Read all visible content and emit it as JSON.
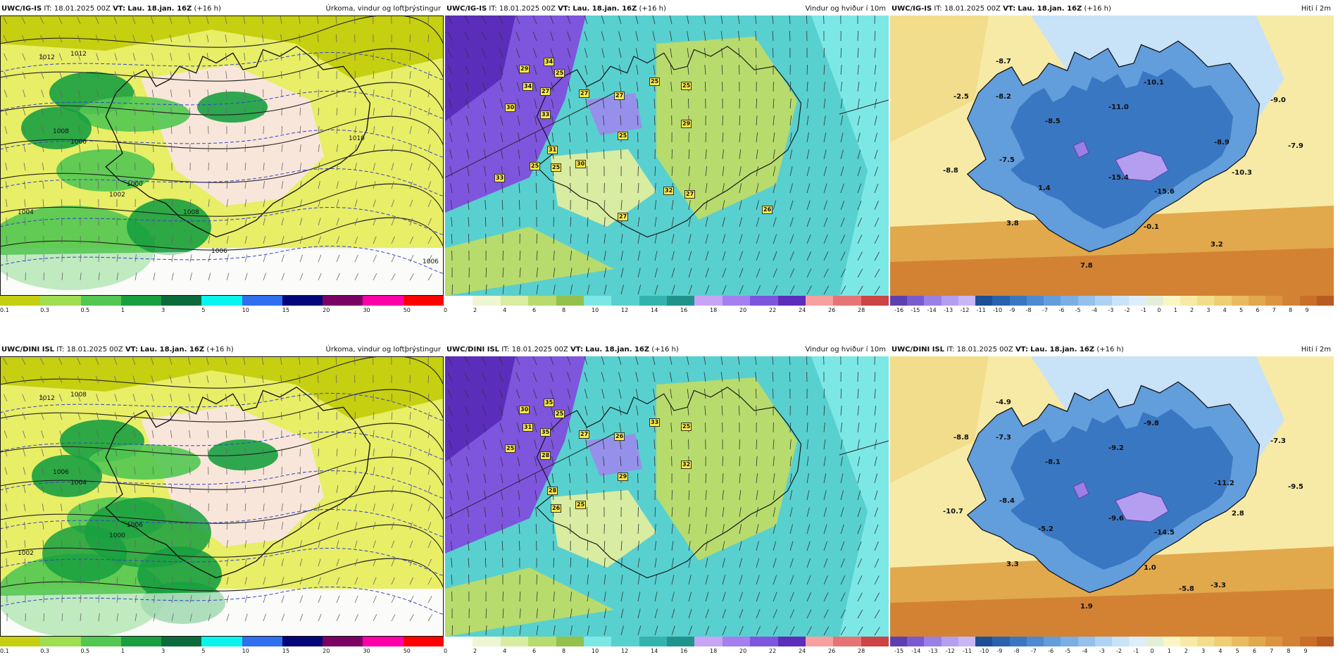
{
  "rows": [
    {
      "panels": [
        {
          "source": "UWC/IG-IS",
          "it": "IT: 18.01.2025 00Z",
          "vt_label": "VT:",
          "vt": "Lau. 18.jan. 16Z",
          "lead": "(+16 h)",
          "title": "Úrkoma, vindur og loftþrýstingur",
          "kind": "precip"
        },
        {
          "source": "UWC/IG-IS",
          "it": "IT: 18.01.2025 00Z",
          "vt_label": "VT:",
          "vt": "Lau. 18.jan. 16Z",
          "lead": "(+16 h)",
          "title": "Vindur og hviður í 10m",
          "kind": "wind"
        },
        {
          "source": "UWC/IG-IS",
          "it": "IT: 18.01.2025 00Z",
          "vt_label": "VT:",
          "vt": "Lau. 18.jan. 16Z",
          "lead": "(+16 h)",
          "title": "Hiti í 2m",
          "kind": "temp"
        }
      ],
      "temp_values": [
        "-8.7",
        "-2.5",
        "-8.2",
        "-10.1",
        "-11.0",
        "-9.0",
        "-8.5",
        "-8.9",
        "-7.9",
        "-7.5",
        "-8.8",
        "-15.4",
        "1.4",
        "-15.6",
        "-10.3",
        "3.8",
        "-0.1",
        "3.2",
        "7.8"
      ],
      "gust_values": [
        "29",
        "34",
        "25",
        "34",
        "27",
        "27",
        "27",
        "25",
        "25",
        "30",
        "33",
        "29",
        "25",
        "31",
        "25",
        "30",
        "33",
        "32",
        "27",
        "25",
        "27",
        "26"
      ],
      "pressure_labels": [
        "1012",
        "1012",
        "1008",
        "1006",
        "1004",
        "1002",
        "1000",
        "1006",
        "1006",
        "1008",
        "1010"
      ],
      "temp_scale_ticks": [
        "-16",
        "-15",
        "-14",
        "-13",
        "-12",
        "-11",
        "-10",
        "-9",
        "-8",
        "-7",
        "-6",
        "-5",
        "-4",
        "-3",
        "-2",
        "-1",
        "0",
        "1",
        "2",
        "3",
        "4",
        "5",
        "6",
        "7",
        "8",
        "9"
      ]
    },
    {
      "panels": [
        {
          "source": "UWC/DINI ISL",
          "it": "IT: 18.01.2025 00Z",
          "vt_label": "VT:",
          "vt": "Lau. 18.jan. 16Z",
          "lead": "(+16 h)",
          "title": "Úrkoma, vindur og loftþrýstingur",
          "kind": "precip"
        },
        {
          "source": "UWC/DINI ISL",
          "it": "IT: 18.01.2025 00Z",
          "vt_label": "VT:",
          "vt": "Lau. 18.jan. 16Z",
          "lead": "(+16 h)",
          "title": "Vindur og hviður í 10m",
          "kind": "wind"
        },
        {
          "source": "UWC/DINI ISL",
          "it": "IT: 18.01.2025 00Z",
          "vt_label": "VT:",
          "vt": "Lau. 18.jan. 16Z",
          "lead": "(+16 h)",
          "title": "Hiti í 2m",
          "kind": "temp"
        }
      ],
      "temp_values": [
        "-4.9",
        "-8.8",
        "-7.3",
        "-9.8",
        "-9.2",
        "-7.3",
        "-8.1",
        "-11.2",
        "-9.5",
        "-8.4",
        "-10.7",
        "-9.6",
        "-5.2",
        "-14.5",
        "2.8",
        "3.3",
        "1.0",
        "-3.3",
        "1.9",
        "-5.8"
      ],
      "gust_values": [
        "30",
        "35",
        "25",
        "31",
        "35",
        "27",
        "26",
        "25",
        "33",
        "25",
        "28",
        "32",
        "29",
        "28",
        "26",
        "25"
      ],
      "pressure_labels": [
        "1012",
        "1008",
        "1006",
        "1004",
        "1002",
        "1000",
        "1006"
      ],
      "temp_scale_ticks": [
        "-15",
        "-14",
        "-13",
        "-12",
        "-11",
        "-10",
        "-9",
        "-8",
        "-7",
        "-6",
        "-5",
        "-4",
        "-3",
        "-2",
        "-1",
        "0",
        "1",
        "2",
        "3",
        "4",
        "5",
        "6",
        "7",
        "8",
        "9"
      ]
    }
  ],
  "precip_scale": {
    "ticks": [
      "0.1",
      "0.3",
      "0.5",
      "1",
      "3",
      "5",
      "10",
      "15",
      "20",
      "30",
      "50"
    ],
    "colors": [
      "#e8ee66",
      "#c6cf10",
      "#9fde50",
      "#52c752",
      "#18a040",
      "#0b6b3b",
      "#08f4ee",
      "#2f6ff0",
      "#05057a",
      "#7a0064",
      "#ff00a8",
      "#ff0000"
    ]
  },
  "wind_scale": {
    "ticks": [
      "0",
      "2",
      "4",
      "6",
      "8",
      "10",
      "12",
      "14",
      "16",
      "18",
      "20",
      "22",
      "24",
      "26",
      "28"
    ],
    "colors": [
      "#ffffff",
      "#eef6d2",
      "#d8eca2",
      "#b8db6e",
      "#93c14c",
      "#7ce8e6",
      "#58d0cf",
      "#33b3ad",
      "#1f948c",
      "#c8a4f6",
      "#a57ff0",
      "#7e55dd",
      "#5c2dbb",
      "#f6a1a0",
      "#e67474",
      "#cc4444"
    ]
  },
  "temp_scale": {
    "colors": [
      "#5e3fb0",
      "#7a5ad0",
      "#9a7fe5",
      "#b49ef0",
      "#c9b6f5",
      "#1d4e96",
      "#2a62ae",
      "#3a77c2",
      "#4d8ad0",
      "#629ddc",
      "#7aaee4",
      "#93c0ec",
      "#aed2f3",
      "#c8e2f8",
      "#ddeefb",
      "#e4efd8",
      "#fbf6c4",
      "#f7eaa6",
      "#f2dd8c",
      "#efce74",
      "#e9bb5e",
      "#e2a84c",
      "#dc953e",
      "#d38233",
      "#c96f29",
      "#b85a22"
    ]
  }
}
